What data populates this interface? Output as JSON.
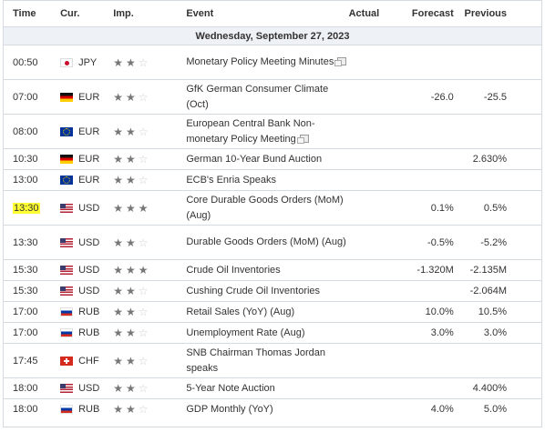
{
  "headers": {
    "time": "Time",
    "currency": "Cur.",
    "importance": "Imp.",
    "event": "Event",
    "actual": "Actual",
    "forecast": "Forecast",
    "previous": "Previous"
  },
  "date_row": "Wednesday, September 27, 2023",
  "colors": {
    "highlight": "#ffff33",
    "date_row_bg": "#eef1f6",
    "border": "#d5d9e0"
  },
  "rows": [
    {
      "time": "00:50",
      "currency": "JPY",
      "flag": "jpy-flag-icon",
      "stars": 2,
      "event": "Monetary Policy Meeting Minutes",
      "has_doc_icon": true,
      "actual": "",
      "forecast": "",
      "previous": ""
    },
    {
      "time": "07:00",
      "currency": "EUR",
      "flag": "germany-flag-icon",
      "stars": 2,
      "event": "GfK German Consumer Climate (Oct)",
      "has_doc_icon": false,
      "actual": "",
      "forecast": "-26.0",
      "previous": "-25.5"
    },
    {
      "time": "08:00",
      "currency": "EUR",
      "flag": "eu-flag-icon",
      "stars": 2,
      "event": "European Central Bank Non-monetary Policy Meeting",
      "has_doc_icon": true,
      "actual": "",
      "forecast": "",
      "previous": ""
    },
    {
      "time": "10:30",
      "currency": "EUR",
      "flag": "germany-flag-icon",
      "stars": 2,
      "event": "German 10-Year Bund Auction",
      "has_doc_icon": false,
      "actual": "",
      "forecast": "",
      "previous": "2.630%"
    },
    {
      "time": "13:00",
      "currency": "EUR",
      "flag": "eu-flag-icon",
      "stars": 2,
      "event": "ECB's Enria Speaks",
      "has_doc_icon": false,
      "actual": "",
      "forecast": "",
      "previous": ""
    },
    {
      "time": "13:30",
      "currency": "USD",
      "flag": "us-flag-icon",
      "stars": 3,
      "event": "Core Durable Goods Orders (MoM) (Aug)",
      "has_doc_icon": false,
      "actual": "",
      "forecast": "0.1%",
      "previous": "0.5%",
      "highlight_time": true
    },
    {
      "time": "13:30",
      "currency": "USD",
      "flag": "us-flag-icon",
      "stars": 2,
      "event": "Durable Goods Orders (MoM) (Aug)",
      "has_doc_icon": false,
      "actual": "",
      "forecast": "-0.5%",
      "previous": "-5.2%"
    },
    {
      "time": "15:30",
      "currency": "USD",
      "flag": "us-flag-icon",
      "stars": 3,
      "event": "Crude Oil Inventories",
      "has_doc_icon": false,
      "actual": "",
      "forecast": "-1.320M",
      "previous": "-2.135M"
    },
    {
      "time": "15:30",
      "currency": "USD",
      "flag": "us-flag-icon",
      "stars": 2,
      "event": "Cushing Crude Oil Inventories",
      "has_doc_icon": false,
      "actual": "",
      "forecast": "",
      "previous": "-2.064M"
    },
    {
      "time": "17:00",
      "currency": "RUB",
      "flag": "russia-flag-icon",
      "stars": 2,
      "event": "Retail Sales (YoY) (Aug)",
      "has_doc_icon": false,
      "actual": "",
      "forecast": "10.0%",
      "previous": "10.5%"
    },
    {
      "time": "17:00",
      "currency": "RUB",
      "flag": "russia-flag-icon",
      "stars": 2,
      "event": "Unemployment Rate (Aug)",
      "has_doc_icon": false,
      "actual": "",
      "forecast": "3.0%",
      "previous": "3.0%"
    },
    {
      "time": "17:45",
      "currency": "CHF",
      "flag": "swiss-flag-icon",
      "stars": 2,
      "event": "SNB Chairman Thomas Jordan speaks",
      "has_doc_icon": false,
      "actual": "",
      "forecast": "",
      "previous": ""
    },
    {
      "time": "18:00",
      "currency": "USD",
      "flag": "us-flag-icon",
      "stars": 2,
      "event": "5-Year Note Auction",
      "has_doc_icon": false,
      "actual": "",
      "forecast": "",
      "previous": "4.400%"
    },
    {
      "time": "18:00",
      "currency": "RUB",
      "flag": "russia-flag-icon",
      "stars": 2,
      "event": "GDP Monthly (YoY)",
      "has_doc_icon": false,
      "actual": "",
      "forecast": "4.0%",
      "previous": "5.0%"
    }
  ]
}
